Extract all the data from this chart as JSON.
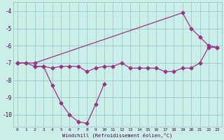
{
  "bg_color": "#cceee8",
  "line_color": "#993388",
  "grid_color": "#99cccc",
  "xlim_min": -0.5,
  "xlim_max": 23.5,
  "ylim_min": -10.7,
  "ylim_max": -3.5,
  "yticks": [
    -10,
    -9,
    -8,
    -7,
    -6,
    -5,
    -4
  ],
  "xticks": [
    0,
    1,
    2,
    3,
    4,
    5,
    6,
    7,
    8,
    9,
    10,
    11,
    12,
    13,
    14,
    15,
    16,
    17,
    18,
    19,
    20,
    21,
    22,
    23
  ],
  "xlabel": "Windchill (Refroidissement éolien,°C)",
  "line_flat_x": [
    0,
    1,
    2,
    3,
    4,
    5,
    6,
    7,
    8,
    9,
    10,
    11,
    12,
    13,
    14,
    15,
    16,
    17,
    18,
    19,
    20,
    21,
    22,
    23
  ],
  "line_flat_y": [
    -7.0,
    -7.0,
    -7.2,
    -7.2,
    -7.3,
    -7.2,
    -7.2,
    -7.2,
    -7.5,
    -7.3,
    -7.2,
    -7.2,
    -7.0,
    -7.3,
    -7.3,
    -7.3,
    -7.3,
    -7.5,
    -7.5,
    -7.3,
    -7.3,
    -7.0,
    -6.1,
    -6.1
  ],
  "line_rise_x": [
    0,
    2,
    19,
    20,
    21,
    22,
    23
  ],
  "line_rise_y": [
    -7.0,
    -7.0,
    -4.1,
    -5.0,
    -5.5,
    -6.0,
    -6.1
  ],
  "line_vshaped_x": [
    2,
    3,
    4,
    5,
    6,
    7,
    8,
    9,
    10
  ],
  "line_vshaped_y": [
    -7.2,
    -7.2,
    -8.3,
    -9.3,
    -10.0,
    -10.4,
    -10.5,
    -9.4,
    -8.2
  ]
}
